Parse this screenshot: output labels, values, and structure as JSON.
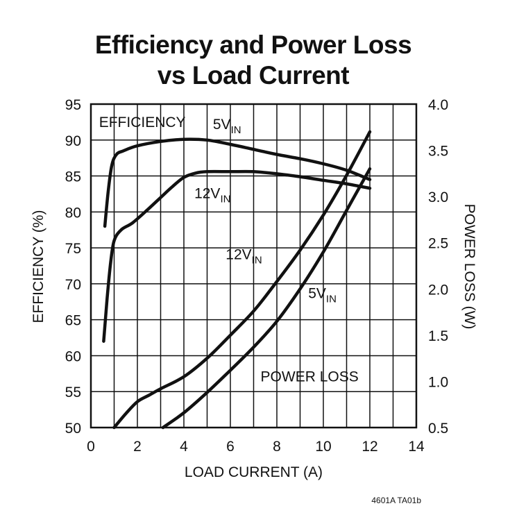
{
  "chart_data": {
    "type": "line",
    "title_line1": "Efficiency and Power Loss",
    "title_line2": "vs Load Current",
    "xlabel": "LOAD CURRENT (A)",
    "ylabel_left": "EFFICIENCY (%)",
    "ylabel_right": "POWER LOSS (W)",
    "xlim": [
      0,
      14
    ],
    "ylim_left": [
      50,
      95
    ],
    "ylim_right": [
      0.5,
      4.0
    ],
    "x_ticks": [
      "0",
      "2",
      "4",
      "6",
      "8",
      "10",
      "12",
      "14"
    ],
    "y_ticks_left": [
      "95",
      "90",
      "85",
      "80",
      "75",
      "70",
      "65",
      "60",
      "55",
      "50"
    ],
    "y_ticks_right": [
      "4.0",
      "3.5",
      "3.0",
      "2.5",
      "2.0",
      "1.5",
      "1.0",
      "0.5"
    ],
    "grid": true,
    "annotations": {
      "efficiency_group": "EFFICIENCY",
      "power_loss_group": "POWER LOSS",
      "eff_5v": {
        "main": "5V",
        "sub": "IN"
      },
      "eff_12v": {
        "main": "12V",
        "sub": "IN"
      },
      "loss_12v": {
        "main": "12V",
        "sub": "IN"
      },
      "loss_5v": {
        "main": "5V",
        "sub": "IN"
      }
    },
    "series": [
      {
        "name": "Efficiency 5VIN",
        "axis": "left",
        "x": [
          0.6,
          0.75,
          0.9,
          1.1,
          1.4,
          2.0,
          3.0,
          4.0,
          5.0,
          6.0,
          7.0,
          8.0,
          9.0,
          10.0,
          11.0,
          12.0
        ],
        "y": [
          78,
          83,
          86.5,
          88,
          88.5,
          89.2,
          89.8,
          90.1,
          90.0,
          89.4,
          88.7,
          88.0,
          87.4,
          86.7,
          85.8,
          84.5
        ]
      },
      {
        "name": "Efficiency 12VIN",
        "axis": "left",
        "x": [
          0.55,
          0.7,
          0.85,
          1.0,
          1.3,
          1.8,
          2.5,
          3.0,
          3.5,
          4.0,
          4.5,
          5.0,
          6.0,
          7.0,
          8.0,
          9.0,
          10.0,
          11.0,
          12.0
        ],
        "y": [
          62,
          68,
          73,
          76,
          77.5,
          78.5,
          80.5,
          82,
          83.5,
          84.8,
          85.4,
          85.6,
          85.6,
          85.6,
          85.3,
          84.9,
          84.4,
          83.9,
          83.3
        ]
      },
      {
        "name": "Power Loss 12VIN",
        "axis": "right",
        "x": [
          1.0,
          1.5,
          2.0,
          2.5,
          3.0,
          4.0,
          5.0,
          6.0,
          7.0,
          8.0,
          9.0,
          10.0,
          11.0,
          12.0
        ],
        "y": [
          0.5,
          0.65,
          0.78,
          0.85,
          0.92,
          1.05,
          1.25,
          1.5,
          1.76,
          2.08,
          2.42,
          2.8,
          3.23,
          3.7
        ]
      },
      {
        "name": "Power Loss 5VIN",
        "axis": "right",
        "x": [
          3.1,
          4.0,
          5.0,
          6.0,
          7.0,
          8.0,
          9.0,
          10.0,
          11.0,
          12.0
        ],
        "y": [
          0.5,
          0.66,
          0.88,
          1.12,
          1.37,
          1.65,
          2.0,
          2.4,
          2.85,
          3.3
        ]
      }
    ]
  },
  "footer": {
    "code": "4601A TA01b"
  }
}
